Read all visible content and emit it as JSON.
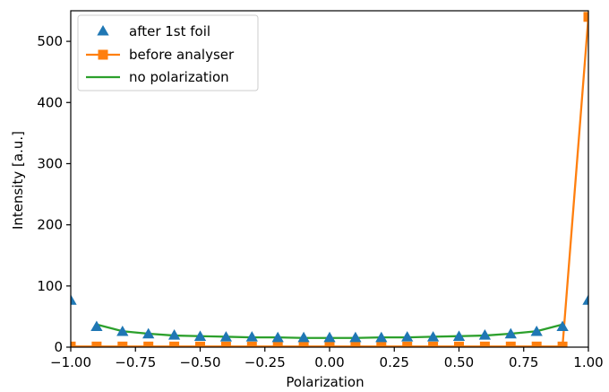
{
  "chart_data": {
    "type": "line",
    "title": "",
    "xlabel": "Polarization",
    "ylabel": "Intensity [a.u.]",
    "xlim": [
      -1.0,
      1.0
    ],
    "ylim": [
      0,
      550
    ],
    "grid": false,
    "legend_position": "top-left",
    "x_ticks": [
      "−1.00",
      "−0.75",
      "−0.50",
      "−0.25",
      "0.00",
      "0.25",
      "0.50",
      "0.75",
      "1.00"
    ],
    "y_ticks": [
      "0",
      "100",
      "200",
      "300",
      "400",
      "500"
    ],
    "series": [
      {
        "name": "after 1st foil",
        "style": "triangle-markers",
        "color": "#1f77b4",
        "x": [
          -1.0,
          -0.9,
          -0.8,
          -0.7,
          -0.6,
          -0.5,
          -0.4,
          -0.3,
          -0.2,
          -0.1,
          0.0,
          0.1,
          0.2,
          0.3,
          0.4,
          0.5,
          0.6,
          0.7,
          0.8,
          0.9,
          1.0
        ],
        "y": [
          76,
          33,
          25,
          21,
          19,
          17,
          16,
          16,
          15,
          15,
          15,
          15,
          15,
          16,
          16,
          17,
          19,
          21,
          25,
          33,
          76
        ]
      },
      {
        "name": "before analyser",
        "style": "line-square-markers",
        "color": "#ff7f0e",
        "x": [
          -1.0,
          -0.9,
          -0.8,
          -0.7,
          -0.6,
          -0.5,
          -0.4,
          -0.3,
          -0.2,
          -0.1,
          0.0,
          0.1,
          0.2,
          0.3,
          0.4,
          0.5,
          0.6,
          0.7,
          0.8,
          0.9,
          1.0
        ],
        "y": [
          1,
          1,
          1,
          1,
          1,
          1,
          1,
          1,
          1,
          1,
          1,
          1,
          1,
          1,
          1,
          1,
          1,
          1,
          1,
          1,
          540
        ]
      },
      {
        "name": "no polarization",
        "style": "line",
        "color": "#2ca02c",
        "x": [
          -0.9,
          -0.8,
          -0.7,
          -0.6,
          -0.5,
          -0.4,
          -0.3,
          -0.2,
          -0.1,
          0.0,
          0.1,
          0.2,
          0.3,
          0.4,
          0.5,
          0.6,
          0.7,
          0.8,
          0.9
        ],
        "y": [
          37,
          26,
          22,
          19,
          18,
          17,
          16,
          16,
          15,
          15,
          15,
          16,
          16,
          17,
          18,
          19,
          22,
          26,
          37
        ]
      }
    ]
  }
}
